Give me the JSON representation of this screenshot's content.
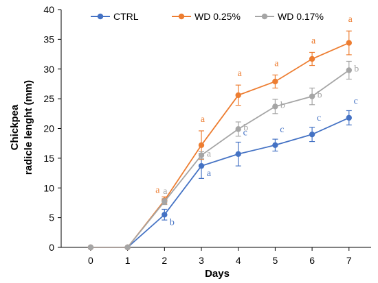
{
  "chart_data": {
    "type": "line",
    "xlabel": "Days",
    "ylabel_lines": [
      "Chickpea",
      "radicle lenght (mm)"
    ],
    "x": [
      0,
      1,
      2,
      3,
      4,
      5,
      6,
      7
    ],
    "xlim": [
      -0.8,
      7.6
    ],
    "ylim": [
      0,
      40
    ],
    "yticks": [
      0,
      5,
      10,
      15,
      20,
      25,
      30,
      35,
      40
    ],
    "grid": false,
    "legend_position": "top",
    "series": [
      {
        "name": "CTRL",
        "color": "#4472C4",
        "values": [
          0,
          0,
          5.5,
          13.7,
          15.7,
          17.2,
          19.0,
          21.8
        ],
        "errors": [
          0,
          0,
          0.9,
          2.1,
          2.0,
          1.0,
          1.2,
          1.2
        ],
        "labels": [
          "",
          "",
          "b",
          "a",
          "c",
          "c",
          "c",
          "c"
        ]
      },
      {
        "name": "WD 0.25%",
        "color": "#ED7D31",
        "values": [
          0,
          0,
          7.9,
          17.2,
          25.6,
          27.9,
          31.7,
          34.4
        ],
        "errors": [
          0,
          0,
          0.6,
          2.4,
          1.7,
          1.1,
          1.1,
          2.0
        ],
        "labels": [
          "",
          "",
          "a",
          "a",
          "a",
          "a",
          "a",
          "a"
        ]
      },
      {
        "name": "WD 0.17%",
        "color": "#A5A5A5",
        "values": [
          0,
          0,
          7.7,
          15.5,
          19.9,
          23.7,
          25.4,
          29.8
        ],
        "errors": [
          0,
          0,
          0.5,
          0.6,
          1.2,
          1.2,
          1.4,
          1.5
        ],
        "labels": [
          "",
          "",
          "a",
          "a",
          "b",
          "b",
          "b",
          "b"
        ]
      }
    ]
  }
}
